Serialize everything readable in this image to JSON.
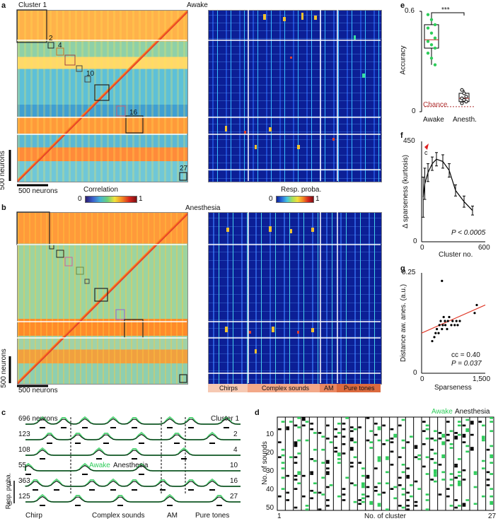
{
  "panels": {
    "a": {
      "letter": "a",
      "state": "Awake",
      "cluster_label": "Cluster 1",
      "cluster_nums": [
        "2",
        "4",
        "10",
        "16",
        "27"
      ],
      "scale_v": "500 neurons",
      "scale_h": "500 neurons",
      "corr_title": "Correlation",
      "corr_min": "0",
      "corr_max": "1",
      "resp_title": "Resp. proba.",
      "resp_min": "0",
      "resp_max": "1"
    },
    "b": {
      "letter": "b",
      "state": "Anesthesia",
      "scale_v": "500 neurons",
      "scale_h": "500 neurons",
      "categories": [
        "Chirps",
        "Complex sounds",
        "AM",
        "Pure tones"
      ]
    },
    "c": {
      "letter": "c",
      "rows": [
        {
          "n": "696 neurons",
          "cluster": "Cluster 1"
        },
        {
          "n": "123",
          "cluster": "2"
        },
        {
          "n": "108",
          "cluster": "4"
        },
        {
          "n": "55",
          "cluster": "10"
        },
        {
          "n": "363",
          "cluster": "16"
        },
        {
          "n": "125",
          "cluster": "27"
        }
      ],
      "legend_awake": "Awake",
      "legend_anes": "Anesthesia",
      "ylabel": "Resp. proba.",
      "y1": "1",
      "y0": "0",
      "xcats": [
        "Chirp",
        "Complex sounds",
        "AM",
        "Pure tones"
      ]
    },
    "d": {
      "letter": "d",
      "legend_awake": "Awake",
      "legend_anes": "Anesthesia",
      "ylabel": "No. of sounds",
      "xlabel": "No. of cluster",
      "yticks": [
        "10",
        "20",
        "30",
        "40",
        "50"
      ],
      "x_first": "1",
      "x_last": "27"
    },
    "e": {
      "letter": "e",
      "ylabel": "Accuracy",
      "yticks": [
        "0.6",
        "0"
      ],
      "sig": "***",
      "chance": "Chance",
      "groups": [
        "Awake",
        "Anesth."
      ]
    },
    "f": {
      "letter": "f",
      "ylabel": "Δ sparseness (kurtosis)",
      "xlabel": "Cluster no.",
      "yticks": [
        "450",
        "0"
      ],
      "xticks": [
        "0",
        "600"
      ],
      "pval": "P < 0.0005",
      "marker": "c"
    },
    "g": {
      "letter": "g",
      "ylabel": "Distance aw. anes. (a.u.)",
      "xlabel": "Sparseness",
      "yticks": [
        "0.25",
        "0"
      ],
      "xticks": [
        "0",
        "1,500"
      ],
      "cc": "cc = 0.40",
      "pval": "P = 0.037"
    }
  },
  "chart_data": [
    {
      "type": "scatter",
      "title": "e",
      "ylabel": "Accuracy",
      "ylim": [
        0,
        0.6
      ],
      "groups": [
        "Awake",
        "Anesth."
      ],
      "awake_points": [
        0.58,
        0.55,
        0.52,
        0.5,
        0.47,
        0.44,
        0.42,
        0.4,
        0.38,
        0.35,
        0.32,
        0.28
      ],
      "anesth_points": [
        0.13,
        0.11,
        0.09,
        0.08,
        0.07,
        0.06,
        0.05
      ],
      "chance_level": 0.03
    },
    {
      "type": "line",
      "title": "f",
      "xlabel": "Cluster no.",
      "ylabel": "Δ sparseness (kurtosis)",
      "xlim": [
        0,
        600
      ],
      "ylim": [
        0,
        450
      ],
      "x": [
        15,
        30,
        60,
        100,
        140,
        200,
        260,
        320,
        400,
        480
      ],
      "y": [
        200,
        260,
        310,
        350,
        370,
        360,
        320,
        230,
        180,
        140
      ],
      "err": [
        90,
        70,
        40,
        30,
        30,
        30,
        30,
        25,
        25,
        20
      ]
    },
    {
      "type": "scatter",
      "title": "g",
      "xlabel": "Sparseness",
      "ylabel": "Distance aw. anes. (a.u.)",
      "xlim": [
        0,
        1500
      ],
      "ylim": [
        0,
        0.25
      ],
      "x": [
        250,
        300,
        330,
        360,
        400,
        420,
        450,
        480,
        500,
        520,
        550,
        560,
        600,
        620,
        650,
        700,
        730,
        780,
        820,
        850,
        900,
        1250,
        1300,
        480
      ],
      "y": [
        0.08,
        0.09,
        0.1,
        0.11,
        0.1,
        0.12,
        0.13,
        0.11,
        0.12,
        0.14,
        0.13,
        0.12,
        0.11,
        0.13,
        0.14,
        0.12,
        0.13,
        0.12,
        0.13,
        0.12,
        0.13,
        0.15,
        0.17,
        0.23
      ],
      "fit": [
        [
          0,
          0.1
        ],
        [
          1500,
          0.17
        ]
      ]
    }
  ]
}
